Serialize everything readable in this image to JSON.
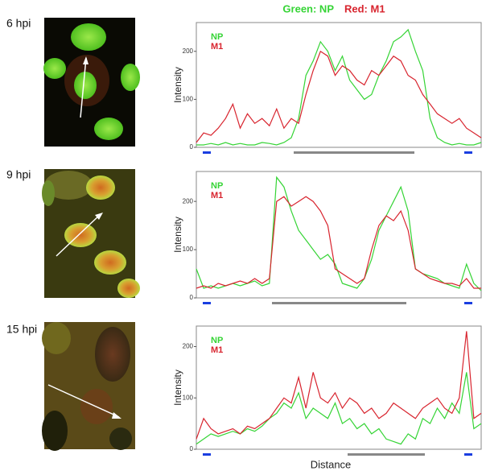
{
  "header": {
    "green": "Green: NP",
    "red": "Red: M1"
  },
  "chart_data": [
    {
      "type": "line",
      "label": "6 hpi",
      "ylabel": "Intensity",
      "ylim": [
        0,
        260
      ],
      "yticks": [
        0,
        100,
        200
      ],
      "series": [
        {
          "name": "NP",
          "color": "#35d435",
          "values": [
            5,
            5,
            8,
            5,
            10,
            5,
            8,
            5,
            5,
            10,
            8,
            5,
            10,
            20,
            60,
            150,
            180,
            220,
            200,
            160,
            190,
            140,
            120,
            100,
            110,
            150,
            180,
            220,
            230,
            245,
            200,
            160,
            60,
            20,
            10,
            5,
            8,
            5,
            5,
            10
          ]
        },
        {
          "name": "M1",
          "color": "#d8242e",
          "values": [
            10,
            30,
            25,
            40,
            60,
            90,
            40,
            70,
            50,
            60,
            45,
            80,
            40,
            60,
            50,
            110,
            160,
            200,
            190,
            150,
            170,
            160,
            140,
            130,
            160,
            150,
            170,
            190,
            180,
            150,
            140,
            110,
            90,
            70,
            60,
            50,
            60,
            40,
            30,
            20
          ]
        }
      ]
    },
    {
      "type": "line",
      "label": "9 hpi",
      "ylabel": "Intensity",
      "ylim": [
        0,
        262
      ],
      "yticks": [
        0,
        100,
        200
      ],
      "series": [
        {
          "name": "NP",
          "color": "#35d435",
          "values": [
            60,
            20,
            25,
            20,
            25,
            30,
            25,
            30,
            35,
            25,
            30,
            250,
            230,
            180,
            140,
            120,
            100,
            80,
            90,
            70,
            30,
            25,
            20,
            40,
            80,
            140,
            170,
            200,
            230,
            180,
            60,
            50,
            45,
            40,
            30,
            25,
            20,
            70,
            30,
            15
          ]
        },
        {
          "name": "M1",
          "color": "#d8242e",
          "values": [
            20,
            25,
            20,
            30,
            25,
            30,
            35,
            30,
            40,
            30,
            40,
            200,
            210,
            190,
            200,
            210,
            200,
            180,
            150,
            60,
            50,
            40,
            30,
            40,
            100,
            150,
            170,
            160,
            180,
            140,
            60,
            50,
            40,
            35,
            30,
            30,
            25,
            40,
            20,
            20
          ]
        }
      ]
    },
    {
      "type": "line",
      "label": "15 hpi",
      "ylabel": "Intensity",
      "xlabel": "Distance",
      "ylim": [
        0,
        240
      ],
      "yticks": [
        0,
        100,
        200
      ],
      "series": [
        {
          "name": "NP",
          "color": "#35d435",
          "values": [
            10,
            20,
            30,
            25,
            30,
            35,
            30,
            40,
            35,
            45,
            60,
            70,
            90,
            80,
            110,
            60,
            80,
            70,
            60,
            90,
            50,
            60,
            40,
            50,
            30,
            40,
            20,
            15,
            10,
            30,
            20,
            60,
            50,
            80,
            60,
            90,
            70,
            150,
            40,
            50
          ]
        },
        {
          "name": "M1",
          "color": "#d8242e",
          "values": [
            20,
            60,
            40,
            30,
            35,
            40,
            30,
            45,
            40,
            50,
            60,
            80,
            100,
            90,
            140,
            80,
            150,
            100,
            90,
            110,
            80,
            100,
            90,
            70,
            80,
            60,
            70,
            90,
            80,
            70,
            60,
            80,
            90,
            100,
            80,
            70,
            100,
            230,
            60,
            70
          ]
        }
      ]
    }
  ]
}
